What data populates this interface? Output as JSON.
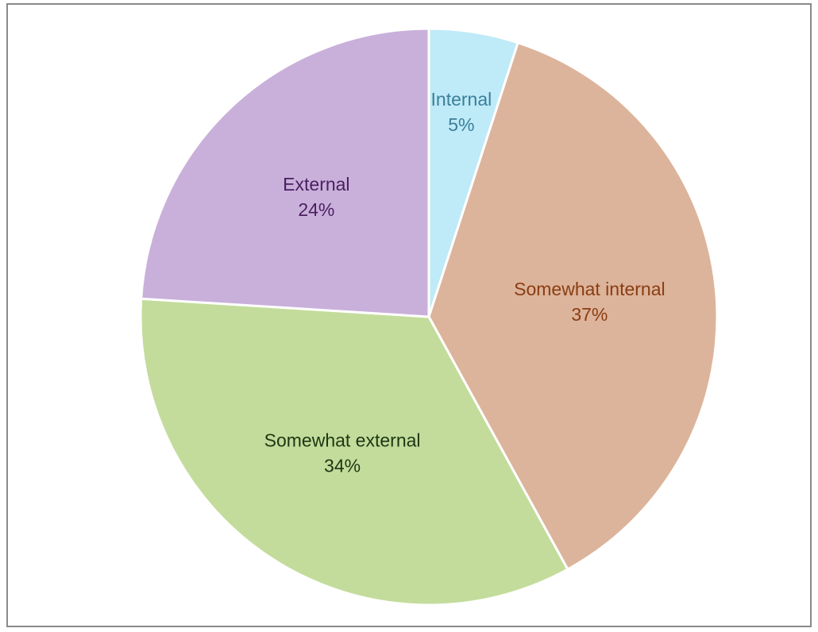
{
  "chart_data": {
    "type": "pie",
    "title": "",
    "slices": [
      {
        "label": "Internal",
        "value": 5,
        "value_text": "5%",
        "color": "#bfeaf7",
        "label_color": "#3a7f9a"
      },
      {
        "label": "Somewhat internal",
        "value": 37,
        "value_text": "37%",
        "color": "#dcb49b",
        "label_color": "#8a3d12"
      },
      {
        "label": "Somewhat external",
        "value": 34,
        "value_text": "34%",
        "color": "#c3dc9c",
        "label_color": "#1e3612"
      },
      {
        "label": "External",
        "value": 24,
        "value_text": "24%",
        "color": "#c9b0da",
        "label_color": "#4a1f62"
      }
    ],
    "start_angle_deg": 0,
    "direction": "clockwise",
    "legend": "none",
    "slice_border_color": "#ffffff"
  }
}
